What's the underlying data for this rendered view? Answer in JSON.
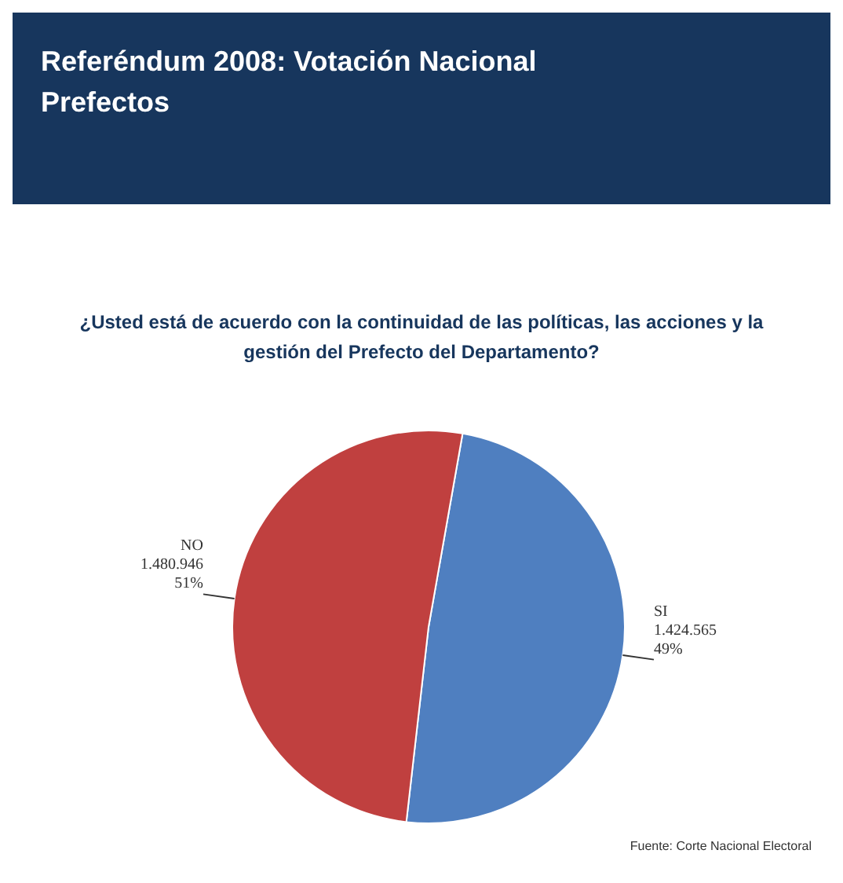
{
  "chart_data": {
    "type": "pie",
    "title": "Referéndum 2008: Votación Nacional Prefectos",
    "subtitle": "¿Usted está de acuerdo con la continuidad de las políticas, las acciones y la gestión del Prefecto del Departamento?",
    "categories": [
      "SI",
      "NO"
    ],
    "values": [
      1424565,
      1480946
    ],
    "colors": [
      "#4f7fc0",
      "#c0403f"
    ],
    "value_labels": [
      "1.424.565\n49%",
      "1.480.946\n51%"
    ],
    "annotations": [
      "Fuente: Corte Nacional Electoral"
    ],
    "legend": false
  }
}
